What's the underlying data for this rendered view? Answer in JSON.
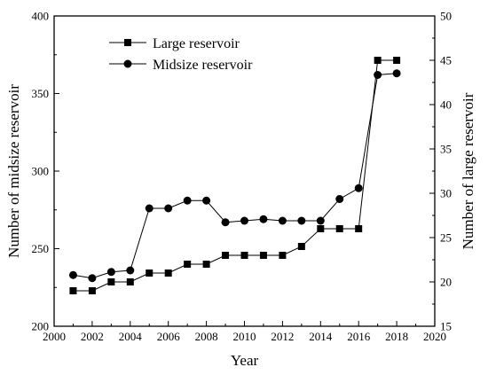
{
  "chart_data": {
    "type": "line",
    "title": "",
    "xlabel": "Year",
    "ylabel_left": "Number of midsize reservoir",
    "ylabel_right": "Number of large reservoir",
    "xlim": [
      2000,
      2020
    ],
    "ylim_left": [
      200,
      400
    ],
    "ylim_right": [
      15,
      50
    ],
    "x_ticks": [
      "2000",
      "2002",
      "2004",
      "2006",
      "2008",
      "2010",
      "2012",
      "2014",
      "2016",
      "2018",
      "2020"
    ],
    "y_left_ticks": [
      "200",
      "250",
      "300",
      "350",
      "400"
    ],
    "y_right_ticks": [
      "15",
      "20",
      "25",
      "30",
      "35",
      "40",
      "45",
      "50"
    ],
    "grid": false,
    "legend_position": "top-left",
    "x": [
      2001,
      2002,
      2003,
      2004,
      2005,
      2006,
      2007,
      2008,
      2009,
      2010,
      2011,
      2012,
      2013,
      2014,
      2015,
      2016,
      2017,
      2018
    ],
    "series": [
      {
        "name": "Large reservoir",
        "axis": "right",
        "marker": "square",
        "values": [
          19,
          19,
          20,
          20,
          21,
          21,
          22,
          22,
          23,
          23,
          23,
          23,
          24,
          26,
          26,
          26,
          45,
          45
        ]
      },
      {
        "name": "Midsize reservoir",
        "axis": "left",
        "marker": "circle",
        "values": [
          233,
          231,
          235,
          236,
          276,
          276,
          281,
          281,
          267,
          268,
          269,
          268,
          268,
          268,
          282,
          289,
          362,
          363
        ]
      }
    ]
  }
}
